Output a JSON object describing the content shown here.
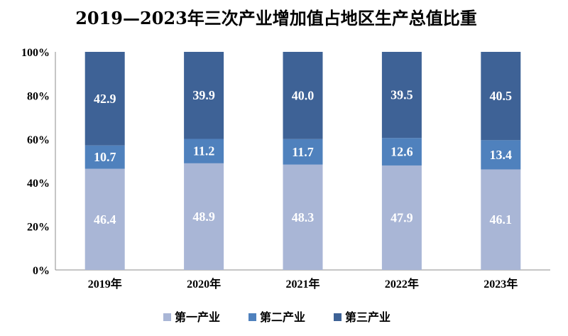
{
  "chart_data": {
    "type": "bar",
    "stacked": true,
    "title": "2019—2023年三次产业增加值占地区生产总值比重",
    "categories": [
      "2019年",
      "2020年",
      "2021年",
      "2022年",
      "2023年"
    ],
    "series": [
      {
        "name": "第一产业",
        "values": [
          46.4,
          48.9,
          48.3,
          47.9,
          46.1
        ],
        "color": "#a9b6d6"
      },
      {
        "name": "第二产业",
        "values": [
          10.7,
          11.2,
          11.7,
          12.6,
          13.4
        ],
        "color": "#4f81bd"
      },
      {
        "name": "第三产业",
        "values": [
          42.9,
          39.9,
          40.0,
          39.5,
          40.5
        ],
        "color": "#3e6296"
      }
    ],
    "y_ticks": [
      "0%",
      "20%",
      "40%",
      "60%",
      "80%",
      "100%"
    ],
    "ylim": [
      0,
      100
    ],
    "grid": false,
    "legend_position": "bottom"
  }
}
